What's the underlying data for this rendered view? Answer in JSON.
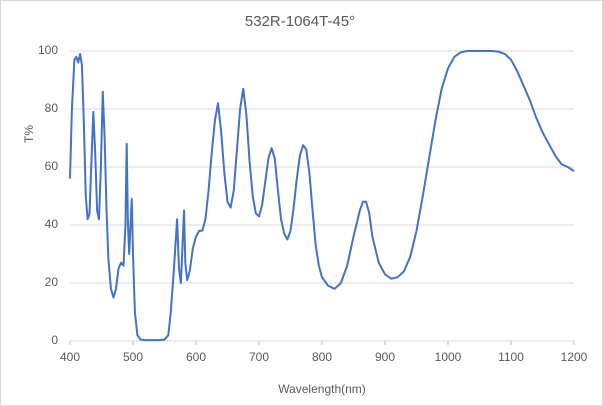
{
  "chart_data": {
    "type": "line",
    "title": "532R-1064T-45°",
    "x_label": "Wavelength(nm)",
    "y_label": "T%",
    "xlim": [
      400,
      1200
    ],
    "xticks": [
      400,
      500,
      600,
      700,
      800,
      900,
      1000,
      1100,
      1200
    ],
    "ylim": [
      0,
      100
    ],
    "yticks": [
      0,
      20,
      40,
      60,
      80,
      100
    ],
    "grid": true,
    "series": [
      {
        "name": "T%",
        "color": "#4472c4",
        "x": [
          400,
          403,
          407,
          410,
          413,
          416,
          419,
          422,
          425,
          428,
          431,
          434,
          437,
          440,
          443,
          446,
          449,
          452,
          455,
          458,
          461,
          465,
          469,
          473,
          477,
          481,
          485,
          488,
          490,
          492,
          494,
          496,
          498,
          500,
          503,
          507,
          512,
          520,
          530,
          540,
          550,
          556,
          560,
          565,
          570,
          573,
          576,
          579,
          581,
          583,
          586,
          590,
          595,
          600,
          605,
          610,
          615,
          620,
          625,
          630,
          635,
          640,
          645,
          650,
          655,
          660,
          665,
          670,
          675,
          680,
          685,
          690,
          695,
          700,
          705,
          710,
          715,
          720,
          725,
          730,
          735,
          740,
          745,
          750,
          755,
          760,
          765,
          770,
          775,
          780,
          785,
          790,
          795,
          800,
          810,
          820,
          830,
          840,
          850,
          860,
          865,
          870,
          875,
          880,
          890,
          900,
          910,
          920,
          930,
          940,
          950,
          960,
          970,
          980,
          990,
          1000,
          1010,
          1020,
          1030,
          1050,
          1070,
          1080,
          1090,
          1100,
          1110,
          1120,
          1130,
          1140,
          1150,
          1160,
          1170,
          1180,
          1190,
          1200
        ],
        "values": [
          56,
          80,
          97,
          98,
          96,
          99,
          95,
          75,
          50,
          42,
          44,
          62,
          79,
          65,
          45,
          42,
          60,
          86,
          70,
          45,
          28,
          18,
          15,
          18,
          25,
          27,
          26,
          40,
          68,
          40,
          30,
          40,
          49,
          30,
          10,
          2,
          0.5,
          0.3,
          0.3,
          0.3,
          0.5,
          2,
          10,
          25,
          42,
          25,
          20,
          35,
          45,
          27,
          21,
          24,
          32,
          36,
          38,
          38,
          42,
          52,
          65,
          76,
          82,
          72,
          58,
          48,
          46,
          52,
          66,
          80,
          87,
          78,
          62,
          50,
          44,
          43,
          47,
          55,
          63,
          66.5,
          63,
          52,
          42,
          37,
          35,
          38,
          46,
          56,
          64,
          67.5,
          66,
          58,
          45,
          33,
          26,
          22,
          19,
          18,
          20,
          26,
          36,
          45,
          48,
          48,
          44,
          36,
          27,
          23,
          21.5,
          22,
          24,
          29,
          38,
          50,
          63,
          76,
          87,
          94,
          98,
          99.5,
          100,
          100,
          100,
          99.8,
          99,
          97,
          93,
          88,
          83,
          77,
          72,
          68,
          64,
          61,
          60,
          58.6
        ]
      }
    ]
  }
}
